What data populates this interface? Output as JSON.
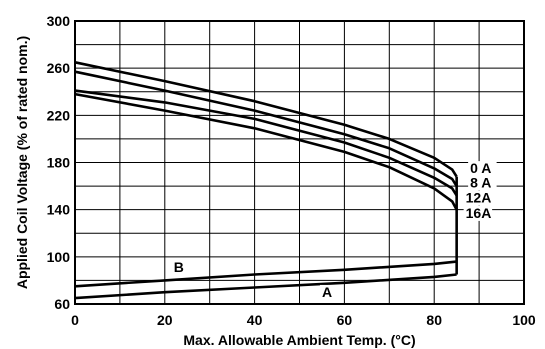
{
  "chart_data": {
    "type": "line",
    "xlabel": "Max. Allowable Ambient Temp. (°C)",
    "ylabel": "Applied Coil Voltage (% of rated nom.)",
    "xlim": [
      0,
      100
    ],
    "ylim": [
      60,
      300
    ],
    "x_ticks": [
      "0",
      "20",
      "40",
      "60",
      "80",
      "100"
    ],
    "y_ticks": [
      "60",
      "100",
      "140",
      "180",
      "220",
      "260",
      "300"
    ],
    "x_grid": [
      0,
      10,
      20,
      30,
      40,
      50,
      60,
      70,
      80,
      90,
      100
    ],
    "y_grid": [
      60,
      80,
      100,
      120,
      140,
      160,
      180,
      200,
      220,
      240,
      260,
      280,
      300
    ],
    "grid": true,
    "series": [
      {
        "name": "0 A",
        "x": [
          0,
          20,
          40,
          60,
          70,
          80,
          84,
          85
        ],
        "y": [
          265,
          249,
          232,
          212,
          200,
          184,
          174,
          168
        ]
      },
      {
        "name": "8 A",
        "x": [
          0,
          20,
          40,
          60,
          70,
          80,
          84,
          85
        ],
        "y": [
          257,
          241,
          224,
          204,
          192,
          175,
          166,
          160
        ]
      },
      {
        "name": "12A",
        "x": [
          0,
          20,
          40,
          60,
          70,
          80,
          84,
          85
        ],
        "y": [
          241,
          231,
          217,
          197,
          184,
          167,
          158,
          152
        ]
      },
      {
        "name": "16A",
        "x": [
          0,
          20,
          40,
          60,
          70,
          80,
          84,
          85
        ],
        "y": [
          238,
          224,
          209,
          189,
          176,
          158,
          147,
          140
        ]
      },
      {
        "name": "B",
        "x": [
          0,
          20,
          40,
          60,
          80,
          85
        ],
        "y": [
          75,
          80,
          85,
          89,
          94,
          96
        ]
      },
      {
        "name": "A",
        "x": [
          0,
          20,
          40,
          60,
          80,
          85
        ],
        "y": [
          65,
          70,
          74,
          78,
          83,
          85
        ]
      }
    ],
    "boundary": {
      "x": [
        85,
        85
      ],
      "y": [
        85,
        168
      ]
    },
    "curve_labels": [
      {
        "text": "0 A",
        "x": 88,
        "y": 171
      },
      {
        "text": "8 A",
        "x": 88,
        "y": 159
      },
      {
        "text": "12A",
        "x": 87,
        "y": 146
      },
      {
        "text": "16A",
        "x": 87,
        "y": 133
      },
      {
        "text": "B",
        "x": 22,
        "y": 87
      },
      {
        "text": "A",
        "x": 55,
        "y": 66
      }
    ]
  }
}
